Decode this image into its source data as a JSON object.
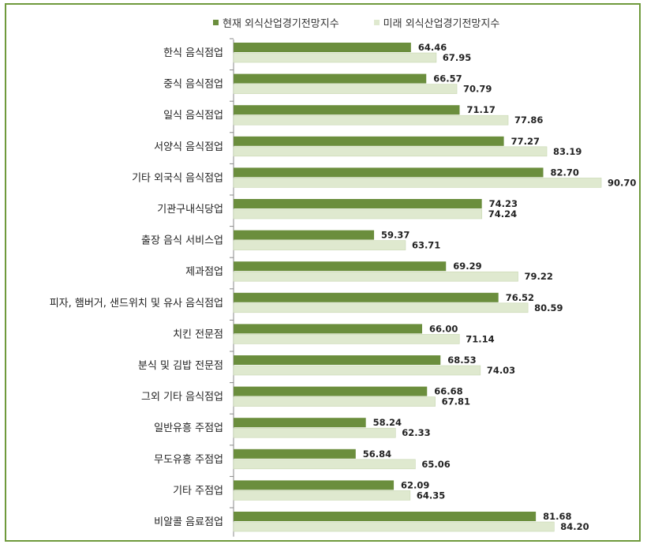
{
  "colors": {
    "current": "#6b8e3d",
    "future": "#dfe9cf",
    "future_stroke": "#c8d7b2",
    "border": "#6f9a3c"
  },
  "chart_data": {
    "type": "bar",
    "orientation": "horizontal",
    "categories": [
      "한식 음식점업",
      "중식 음식점업",
      "일식 음식점업",
      "서양식 음식점업",
      "기타 외국식 음식점업",
      "기관구내식당업",
      "출장 음식 서비스업",
      "제과점업",
      "피자, 햄버거, 샌드위치 및 유사 음식점업",
      "치킨 전문점",
      "분식 및 김밥 전문점",
      "그외 기타 음식점업",
      "일반유흥 주점업",
      "무도유흥 주점업",
      "기타 주점업",
      "비알콜 음료점업"
    ],
    "series": [
      {
        "name": "현재 외식산업경기전망지수",
        "values": [
          64.46,
          66.57,
          71.17,
          77.27,
          82.7,
          74.23,
          59.37,
          69.29,
          76.52,
          66.0,
          68.53,
          66.68,
          58.24,
          56.84,
          62.09,
          81.68
        ]
      },
      {
        "name": "미래 외식산업경기전망지수",
        "values": [
          67.95,
          70.79,
          77.86,
          83.19,
          90.7,
          74.24,
          63.71,
          79.22,
          80.59,
          71.14,
          74.03,
          67.81,
          62.33,
          65.06,
          64.35,
          84.2
        ]
      }
    ],
    "value_labels": {
      "current": [
        "64.46",
        "66.57",
        "71.17",
        "77.27",
        "82.70",
        "74.23",
        "59.37",
        "69.29",
        "76.52",
        "66.00",
        "68.53",
        "66.68",
        "58.24",
        "56.84",
        "62.09",
        "81.68"
      ],
      "future": [
        "67.95",
        "70.79",
        "77.86",
        "83.19",
        "90.70",
        "74.24",
        "63.71",
        "79.22",
        "80.59",
        "71.14",
        "74.03",
        "67.81",
        "62.33",
        "65.06",
        "64.35",
        "84.20"
      ]
    },
    "xlim": [
      40,
      92
    ],
    "legend_position": "top",
    "grid": false
  }
}
